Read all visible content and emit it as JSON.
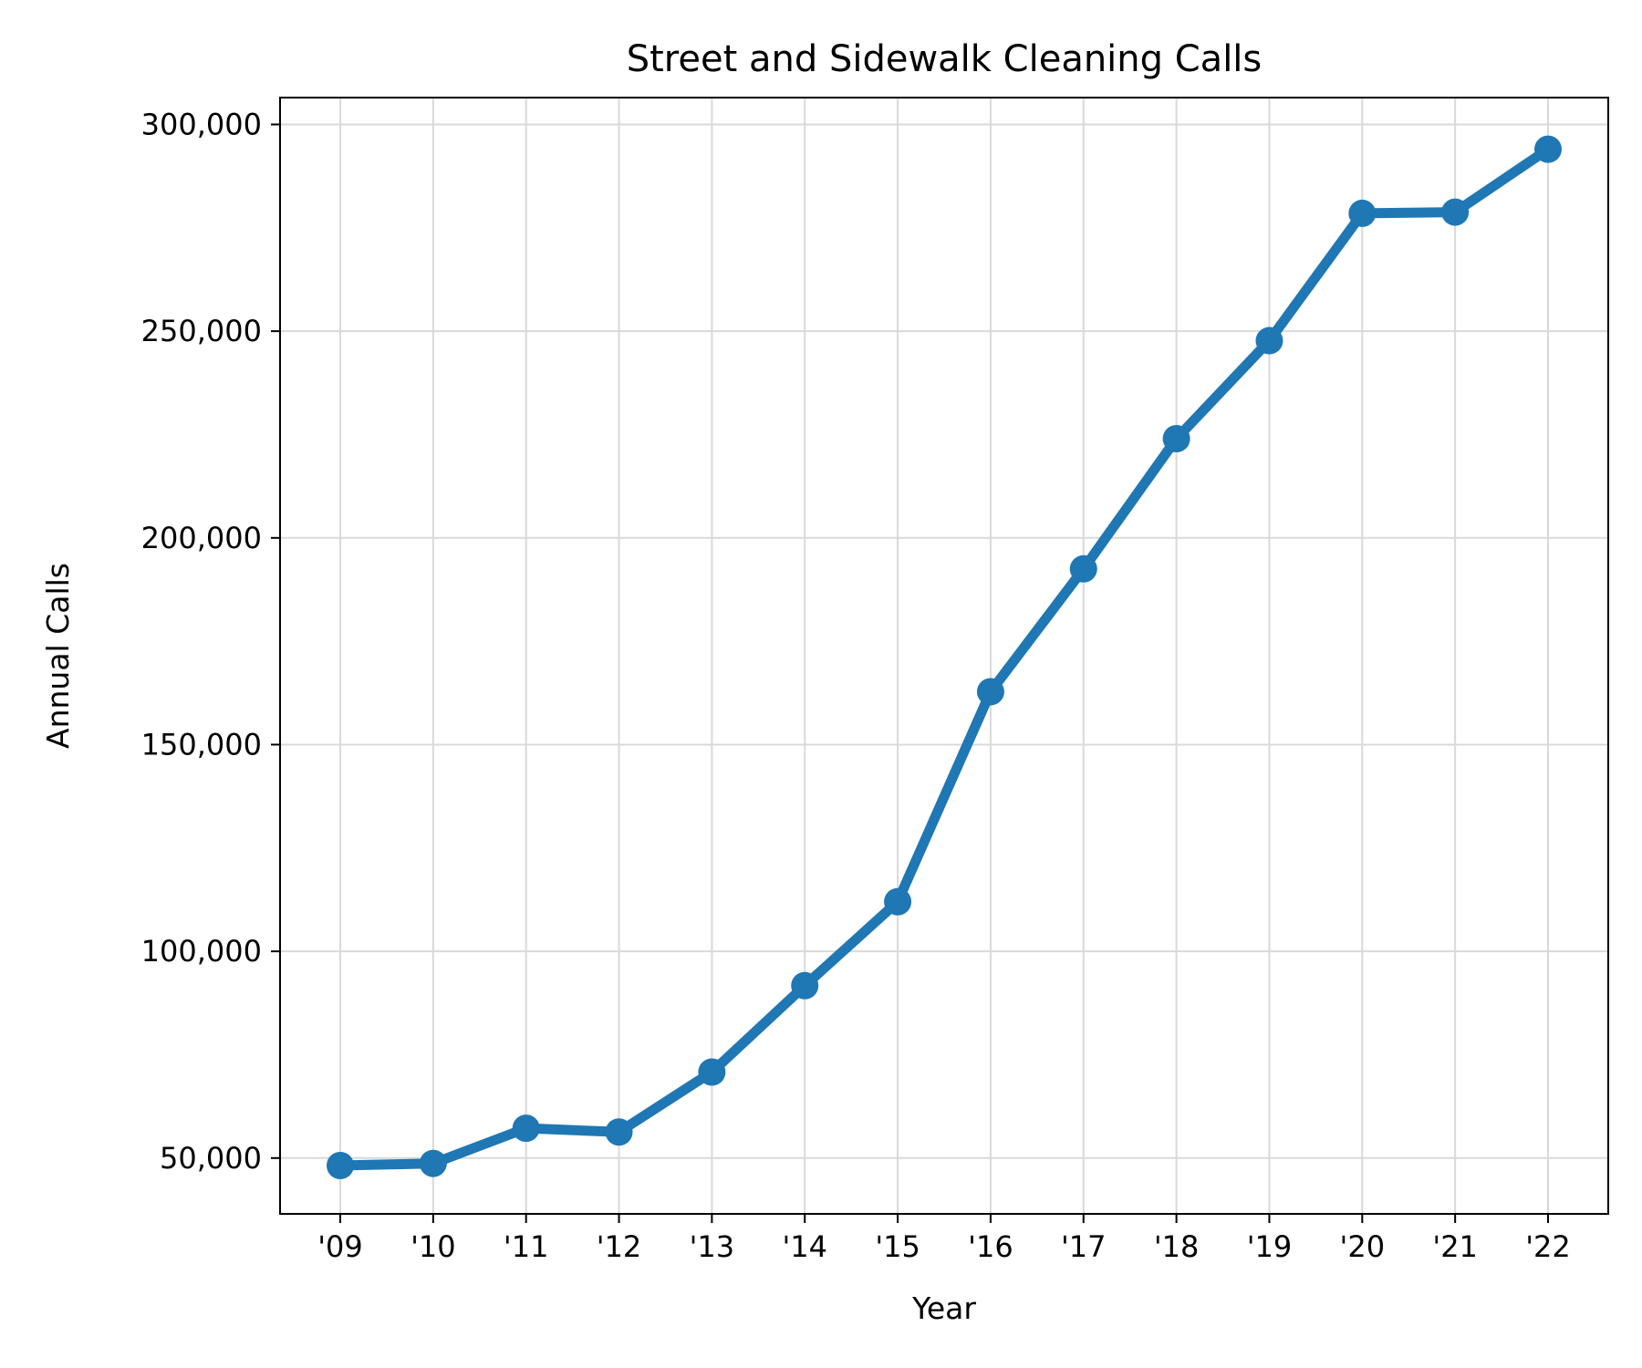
{
  "chart_data": {
    "type": "line",
    "title": "Street and Sidewalk Cleaning Calls",
    "xlabel": "Year",
    "ylabel": "Annual Calls",
    "categories": [
      "'09",
      "'10",
      "'11",
      "'12",
      "'13",
      "'14",
      "'15",
      "'16",
      "'17",
      "'18",
      "'19",
      "'20",
      "'21",
      "'22"
    ],
    "series": [
      {
        "values": [
          48200,
          48700,
          57200,
          56300,
          70800,
          91700,
          112000,
          162800,
          192500,
          224000,
          247700,
          278500,
          278800,
          294000
        ],
        "color": "#1f77b4"
      }
    ],
    "yticks": [
      50000,
      100000,
      150000,
      200000,
      250000,
      300000
    ],
    "ytick_labels": [
      "50,000",
      "100,000",
      "150,000",
      "200,000",
      "250,000",
      "300,000"
    ],
    "ylim": [
      36500,
      306500
    ],
    "grid": true,
    "legend": "none"
  }
}
